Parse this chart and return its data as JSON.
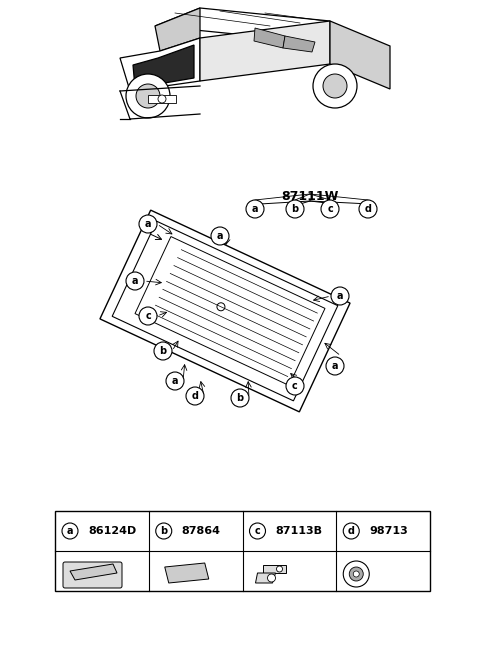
{
  "bg_color": "#ffffff",
  "title": "87111W",
  "part_labels": [
    {
      "letter": "a",
      "code": "86124D"
    },
    {
      "letter": "b",
      "code": "87864"
    },
    {
      "letter": "c",
      "code": "87113B"
    },
    {
      "letter": "d",
      "code": "98713"
    }
  ],
  "callout_letter_a": "a",
  "callout_letter_b": "b",
  "callout_letter_c": "c",
  "callout_letter_d": "d"
}
